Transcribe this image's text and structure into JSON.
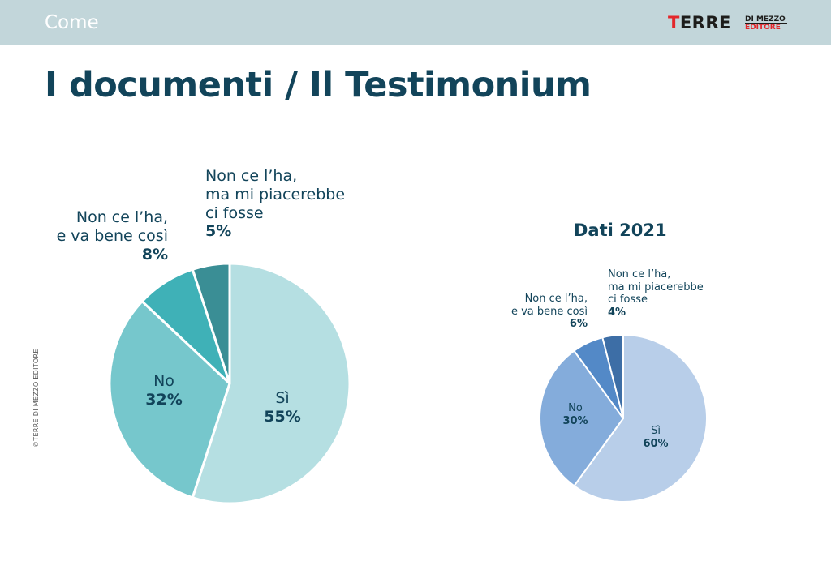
{
  "header": {
    "section": "Come",
    "logo": {
      "main_first": "T",
      "main_rest": "ERRE",
      "line1": "DI MEZZO",
      "line2": "EDITORE"
    }
  },
  "title": "I documenti / Il Testimonium",
  "copyright": "©TERRE DI MEZZO EDITORE",
  "chart_data": [
    {
      "type": "pie",
      "title": "",
      "slices": [
        {
          "label_lines": [
            "Sì"
          ],
          "value": 55,
          "pct_label": "55%",
          "color": "#b5dfe2"
        },
        {
          "label_lines": [
            "No"
          ],
          "value": 32,
          "pct_label": "32%",
          "color": "#76c7cc"
        },
        {
          "label_lines": [
            "Non ce l’ha,",
            "e va bene così"
          ],
          "value": 8,
          "pct_label": "8%",
          "color": "#3fb1b7"
        },
        {
          "label_lines": [
            "Non ce l’ha,",
            "ma mi piacerebbe",
            "ci fosse"
          ],
          "value": 5,
          "pct_label": "5%",
          "color": "#3a8e95"
        }
      ]
    },
    {
      "type": "pie",
      "title": "Dati 2021",
      "slices": [
        {
          "label_lines": [
            "Sì"
          ],
          "value": 60,
          "pct_label": "60%",
          "color": "#b8cee9"
        },
        {
          "label_lines": [
            "No"
          ],
          "value": 30,
          "pct_label": "30%",
          "color": "#84acdb"
        },
        {
          "label_lines": [
            "Non ce l’ha,",
            "e va bene così"
          ],
          "value": 6,
          "pct_label": "6%",
          "color": "#5389c7"
        },
        {
          "label_lines": [
            "Non ce l’ha,",
            "ma mi piacerebbe",
            "ci fosse"
          ],
          "value": 4,
          "pct_label": "4%",
          "color": "#3d6ea6"
        }
      ]
    }
  ]
}
